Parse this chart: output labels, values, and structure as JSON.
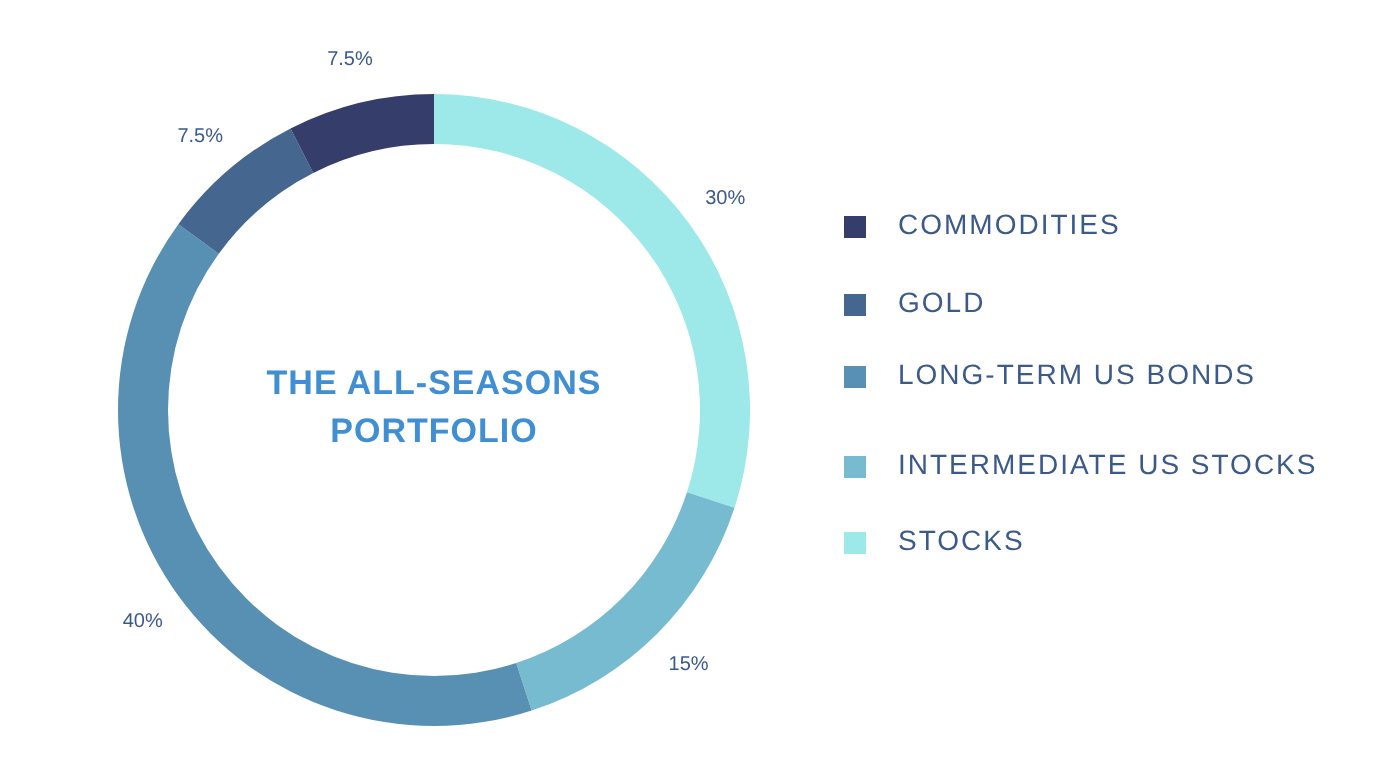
{
  "chart_data": {
    "type": "donut",
    "title": "THE ALL-SEASONS PORTFOLIO",
    "categories": [
      "COMMODITIES",
      "GOLD",
      "LONG-TERM US BONDS",
      "INTERMEDIATE US STOCKS",
      "STOCKS"
    ],
    "values": [
      7.5,
      7.5,
      40,
      15,
      30
    ],
    "colors": [
      "#353d6b",
      "#45678f",
      "#5890b4",
      "#76bbcf",
      "#9de8e8"
    ],
    "value_labels": [
      "7.5%",
      "7.5%",
      "40%",
      "15%",
      "30%"
    ],
    "legend": "right"
  }
}
